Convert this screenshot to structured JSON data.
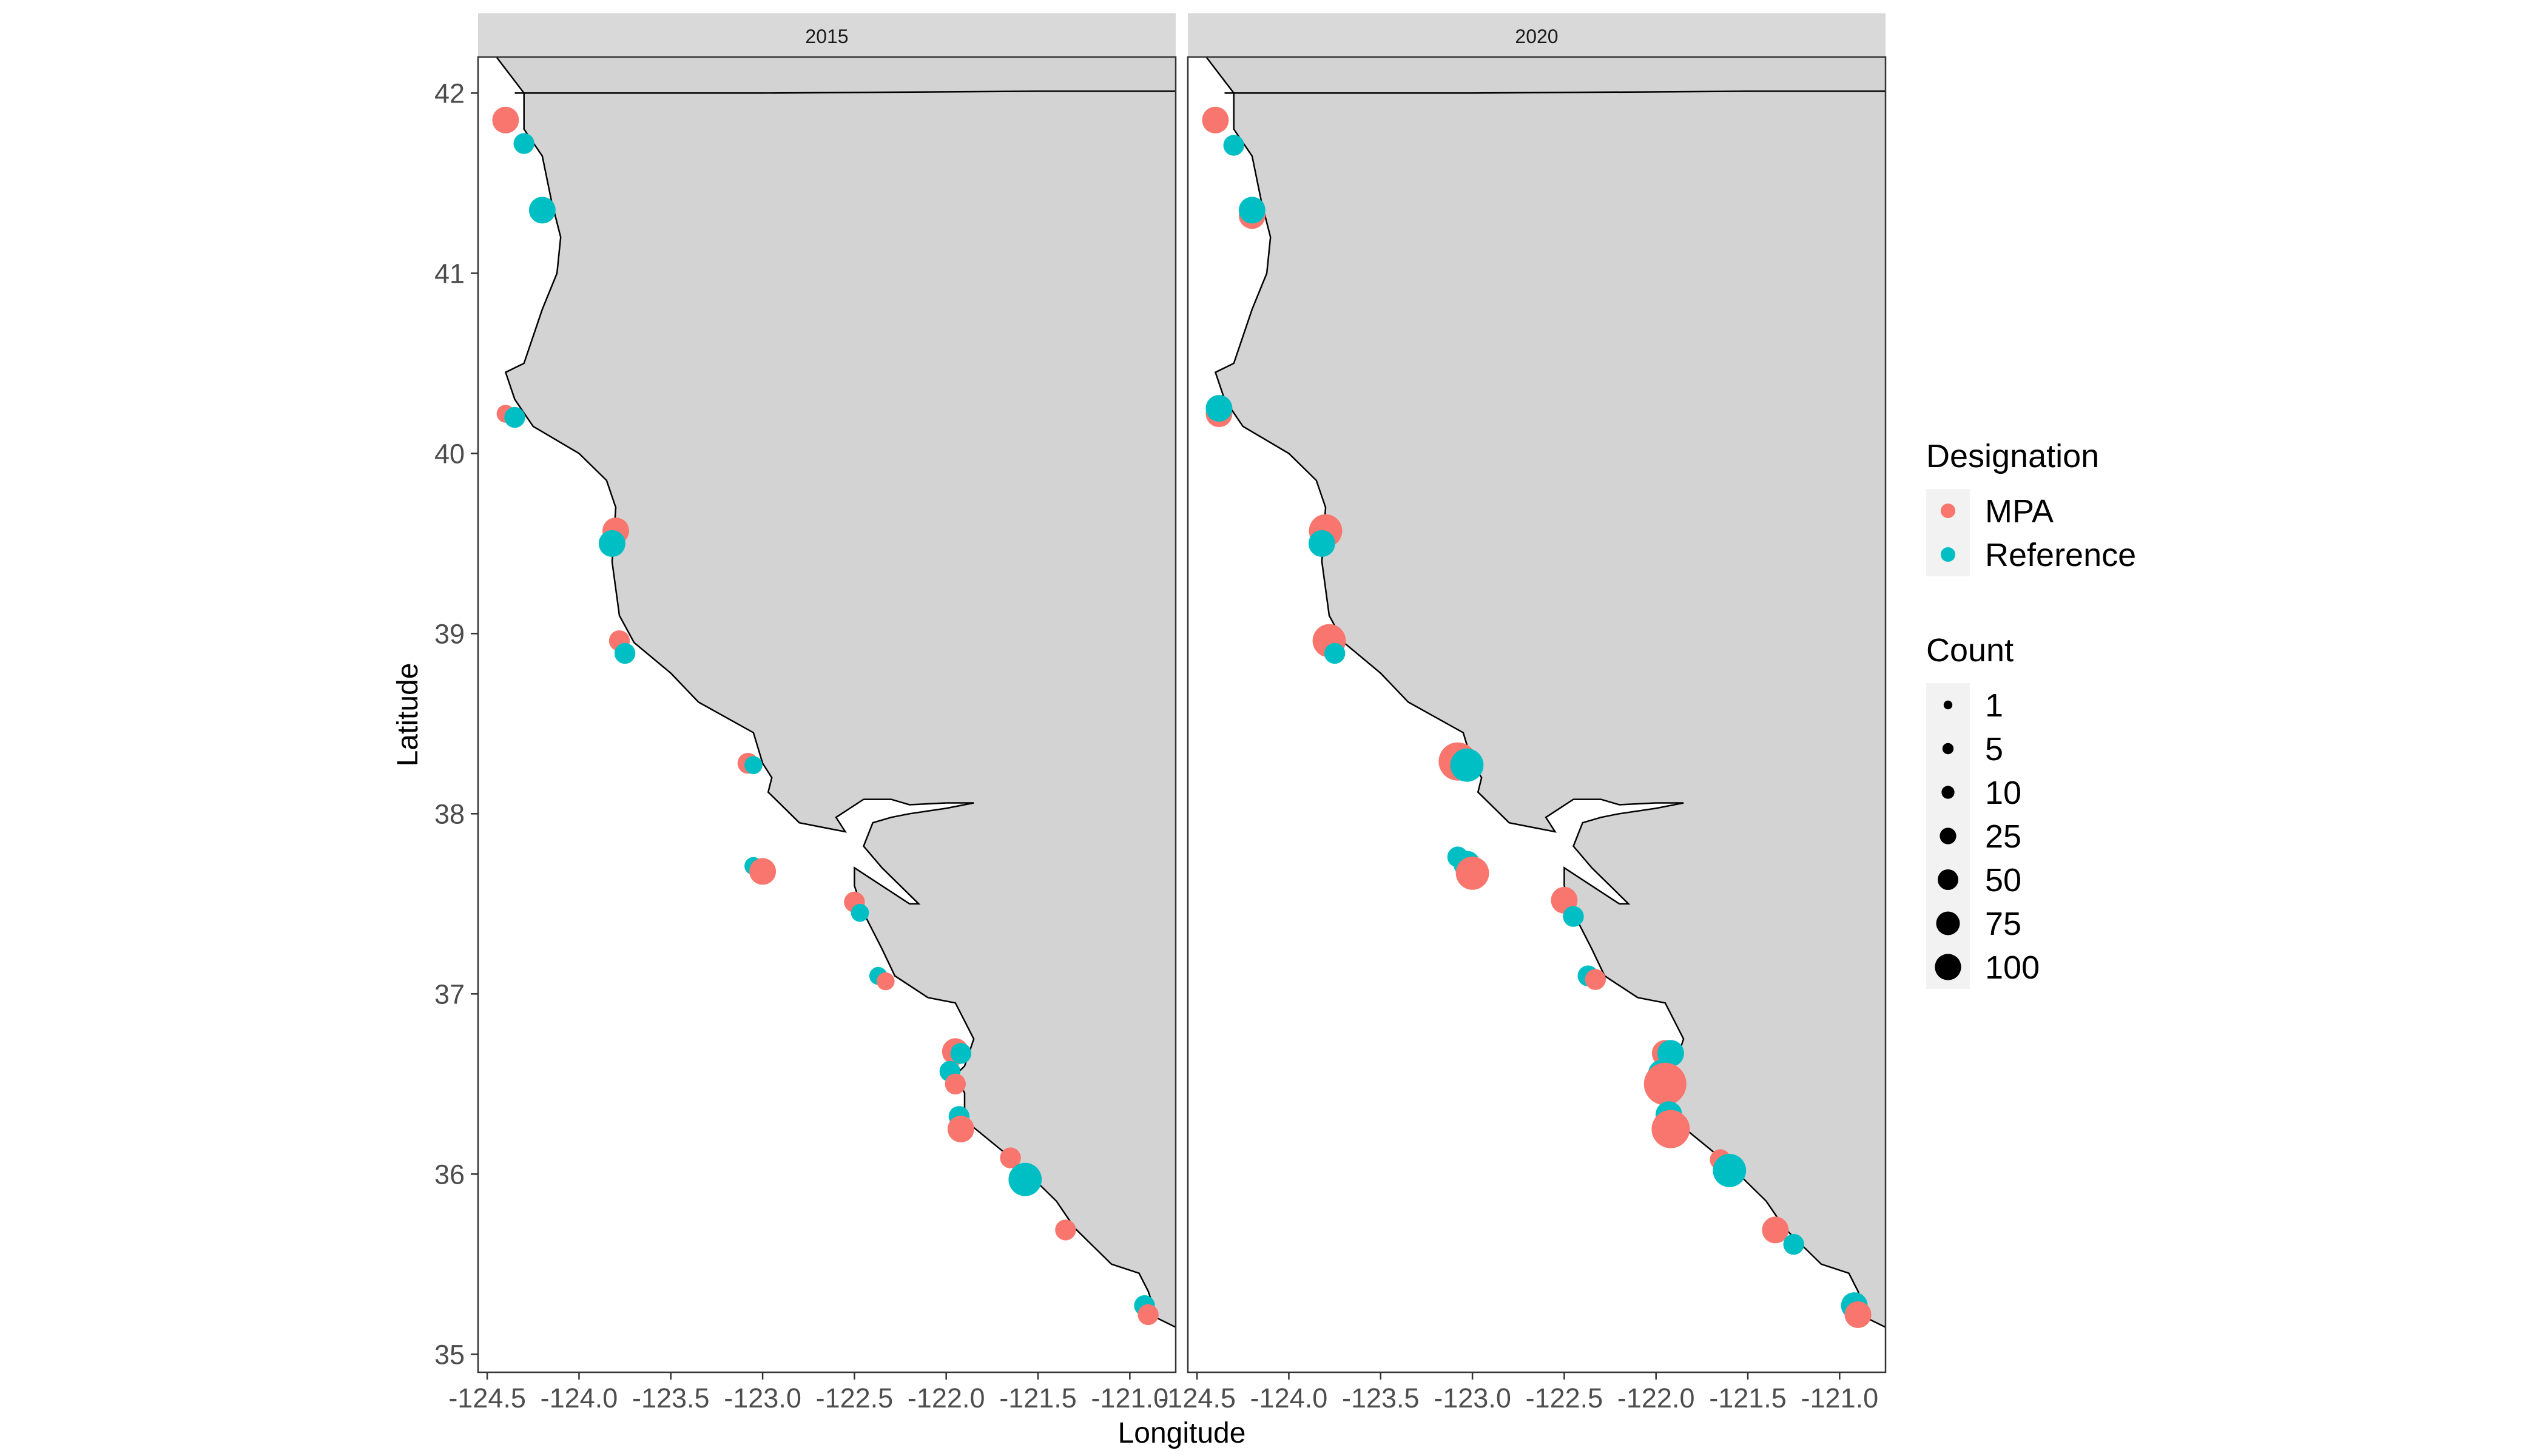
{
  "chart_data": {
    "type": "scatter",
    "facets": [
      "2015",
      "2020"
    ],
    "xlabel": "Longitude",
    "ylabel": "Latitude",
    "xlim": [
      -124.55,
      -120.75
    ],
    "ylim": [
      34.9,
      42.2
    ],
    "xticks": [
      -124.5,
      -124.0,
      -123.5,
      -123.0,
      -122.5,
      -122.0,
      -121.5,
      -121.0
    ],
    "xtick_labels": [
      "-124.5",
      "-124.0",
      "-123.5",
      "-123.0",
      "-122.5",
      "-122.0",
      "-121.5",
      "-121.0"
    ],
    "yticks": [
      35,
      36,
      37,
      38,
      39,
      40,
      41,
      42
    ],
    "ytick_labels": [
      "35",
      "36",
      "37",
      "38",
      "39",
      "40",
      "41",
      "42"
    ],
    "grid": false,
    "background": {
      "land": "#d3d3d3",
      "ocean": "#ffffff",
      "strip": "#d9d9d9",
      "outline": "#000000"
    },
    "legend": {
      "placement": "right",
      "color_title": "Designation",
      "color_entries": [
        {
          "label": "MPA",
          "color": "#F8766D"
        },
        {
          "label": "Reference",
          "color": "#00BFC4"
        }
      ],
      "size_title": "Count",
      "size_entries": [
        {
          "label": "1",
          "value": 1
        },
        {
          "label": "5",
          "value": 5
        },
        {
          "label": "10",
          "value": 10
        },
        {
          "label": "25",
          "value": 25
        },
        {
          "label": "50",
          "value": 50
        },
        {
          "label": "75",
          "value": 75
        },
        {
          "label": "100",
          "value": 100
        }
      ]
    },
    "coastline": [
      [
        -124.45,
        42.2
      ],
      [
        -124.3,
        42.0
      ],
      [
        -124.3,
        41.8
      ],
      [
        -124.2,
        41.65
      ],
      [
        -124.15,
        41.4
      ],
      [
        -124.1,
        41.2
      ],
      [
        -124.12,
        41.0
      ],
      [
        -124.2,
        40.8
      ],
      [
        -124.3,
        40.5
      ],
      [
        -124.4,
        40.45
      ],
      [
        -124.35,
        40.3
      ],
      [
        -124.25,
        40.15
      ],
      [
        -124.0,
        40.0
      ],
      [
        -123.85,
        39.85
      ],
      [
        -123.8,
        39.7
      ],
      [
        -123.82,
        39.4
      ],
      [
        -123.78,
        39.1
      ],
      [
        -123.7,
        38.95
      ],
      [
        -123.5,
        38.78
      ],
      [
        -123.35,
        38.62
      ],
      [
        -123.05,
        38.45
      ],
      [
        -123.0,
        38.28
      ],
      [
        -122.95,
        38.2
      ],
      [
        -122.97,
        38.12
      ],
      [
        -122.85,
        38.0
      ],
      [
        -122.8,
        37.95
      ],
      [
        -122.65,
        37.92
      ],
      [
        -122.55,
        37.9
      ],
      [
        -122.6,
        37.98
      ],
      [
        -122.45,
        38.08
      ],
      [
        -122.3,
        38.08
      ],
      [
        -122.2,
        38.05
      ],
      [
        -122.0,
        38.06
      ],
      [
        -121.85,
        38.06
      ],
      [
        -122.0,
        38.03
      ],
      [
        -122.2,
        38.0
      ],
      [
        -122.3,
        37.98
      ],
      [
        -122.4,
        37.95
      ],
      [
        -122.45,
        37.82
      ],
      [
        -122.35,
        37.7
      ],
      [
        -122.15,
        37.5
      ],
      [
        -122.2,
        37.5
      ],
      [
        -122.38,
        37.62
      ],
      [
        -122.5,
        37.7
      ],
      [
        -122.5,
        37.6
      ],
      [
        -122.45,
        37.45
      ],
      [
        -122.35,
        37.25
      ],
      [
        -122.28,
        37.1
      ],
      [
        -122.1,
        36.98
      ],
      [
        -121.95,
        36.95
      ],
      [
        -121.9,
        36.85
      ],
      [
        -121.85,
        36.75
      ],
      [
        -121.9,
        36.6
      ],
      [
        -121.95,
        36.55
      ],
      [
        -121.9,
        36.45
      ],
      [
        -121.9,
        36.3
      ],
      [
        -121.6,
        36.05
      ],
      [
        -121.4,
        35.85
      ],
      [
        -121.3,
        35.7
      ],
      [
        -121.2,
        35.6
      ],
      [
        -121.1,
        35.5
      ],
      [
        -120.95,
        35.45
      ],
      [
        -120.9,
        35.35
      ],
      [
        -120.85,
        35.2
      ],
      [
        -120.75,
        35.15
      ]
    ],
    "border": [
      [
        -124.35,
        42.0
      ],
      [
        -123.0,
        42.0
      ],
      [
        -121.5,
        42.01
      ],
      [
        -120.75,
        42.01
      ]
    ],
    "series": [
      {
        "facet": "2015",
        "points": [
          {
            "lon": -124.4,
            "lat": 41.85,
            "group": "MPA",
            "count": 25
          },
          {
            "lon": -124.3,
            "lat": 41.72,
            "group": "Reference",
            "count": 10
          },
          {
            "lon": -124.2,
            "lat": 41.35,
            "group": "Reference",
            "count": 25
          },
          {
            "lon": -124.4,
            "lat": 40.22,
            "group": "MPA",
            "count": 5
          },
          {
            "lon": -124.35,
            "lat": 40.2,
            "group": "Reference",
            "count": 10
          },
          {
            "lon": -123.8,
            "lat": 39.57,
            "group": "MPA",
            "count": 25
          },
          {
            "lon": -123.82,
            "lat": 39.5,
            "group": "Reference",
            "count": 25
          },
          {
            "lon": -123.78,
            "lat": 38.96,
            "group": "MPA",
            "count": 10
          },
          {
            "lon": -123.75,
            "lat": 38.89,
            "group": "Reference",
            "count": 10
          },
          {
            "lon": -123.08,
            "lat": 38.28,
            "group": "MPA",
            "count": 10
          },
          {
            "lon": -123.05,
            "lat": 38.27,
            "group": "Reference",
            "count": 5
          },
          {
            "lon": -123.05,
            "lat": 37.71,
            "group": "Reference",
            "count": 5
          },
          {
            "lon": -123.0,
            "lat": 37.68,
            "group": "MPA",
            "count": 25
          },
          {
            "lon": -122.5,
            "lat": 37.51,
            "group": "MPA",
            "count": 10
          },
          {
            "lon": -122.47,
            "lat": 37.45,
            "group": "Reference",
            "count": 5
          },
          {
            "lon": -122.37,
            "lat": 37.1,
            "group": "Reference",
            "count": 5
          },
          {
            "lon": -122.33,
            "lat": 37.07,
            "group": "MPA",
            "count": 5
          },
          {
            "lon": -121.95,
            "lat": 36.68,
            "group": "MPA",
            "count": 25
          },
          {
            "lon": -121.92,
            "lat": 36.67,
            "group": "Reference",
            "count": 10
          },
          {
            "lon": -121.98,
            "lat": 36.57,
            "group": "Reference",
            "count": 10
          },
          {
            "lon": -121.95,
            "lat": 36.5,
            "group": "MPA",
            "count": 10
          },
          {
            "lon": -121.93,
            "lat": 36.32,
            "group": "Reference",
            "count": 10
          },
          {
            "lon": -121.92,
            "lat": 36.25,
            "group": "MPA",
            "count": 25
          },
          {
            "lon": -121.65,
            "lat": 36.09,
            "group": "MPA",
            "count": 10
          },
          {
            "lon": -121.57,
            "lat": 35.97,
            "group": "Reference",
            "count": 50
          },
          {
            "lon": -121.35,
            "lat": 35.69,
            "group": "MPA",
            "count": 10
          },
          {
            "lon": -120.92,
            "lat": 35.27,
            "group": "Reference",
            "count": 10
          },
          {
            "lon": -120.9,
            "lat": 35.22,
            "group": "MPA",
            "count": 10
          }
        ]
      },
      {
        "facet": "2020",
        "points": [
          {
            "lon": -124.4,
            "lat": 41.85,
            "group": "MPA",
            "count": 25
          },
          {
            "lon": -124.3,
            "lat": 41.71,
            "group": "Reference",
            "count": 10
          },
          {
            "lon": -124.2,
            "lat": 41.32,
            "group": "MPA",
            "count": 25
          },
          {
            "lon": -124.2,
            "lat": 41.35,
            "group": "Reference",
            "count": 25
          },
          {
            "lon": -124.38,
            "lat": 40.22,
            "group": "MPA",
            "count": 25
          },
          {
            "lon": -124.38,
            "lat": 40.25,
            "group": "Reference",
            "count": 25
          },
          {
            "lon": -123.8,
            "lat": 39.57,
            "group": "MPA",
            "count": 50
          },
          {
            "lon": -123.82,
            "lat": 39.5,
            "group": "Reference",
            "count": 25
          },
          {
            "lon": -123.78,
            "lat": 38.96,
            "group": "MPA",
            "count": 50
          },
          {
            "lon": -123.75,
            "lat": 38.89,
            "group": "Reference",
            "count": 10
          },
          {
            "lon": -123.08,
            "lat": 38.29,
            "group": "MPA",
            "count": 75
          },
          {
            "lon": -123.03,
            "lat": 38.27,
            "group": "Reference",
            "count": 50
          },
          {
            "lon": -123.08,
            "lat": 37.76,
            "group": "Reference",
            "count": 10
          },
          {
            "lon": -123.03,
            "lat": 37.72,
            "group": "Reference",
            "count": 25
          },
          {
            "lon": -123.0,
            "lat": 37.67,
            "group": "MPA",
            "count": 50
          },
          {
            "lon": -122.5,
            "lat": 37.52,
            "group": "MPA",
            "count": 25
          },
          {
            "lon": -122.45,
            "lat": 37.43,
            "group": "Reference",
            "count": 10
          },
          {
            "lon": -122.37,
            "lat": 37.1,
            "group": "Reference",
            "count": 10
          },
          {
            "lon": -122.33,
            "lat": 37.08,
            "group": "MPA",
            "count": 10
          },
          {
            "lon": -121.95,
            "lat": 36.67,
            "group": "MPA",
            "count": 25
          },
          {
            "lon": -121.92,
            "lat": 36.67,
            "group": "Reference",
            "count": 25
          },
          {
            "lon": -121.97,
            "lat": 36.56,
            "group": "Reference",
            "count": 25
          },
          {
            "lon": -121.95,
            "lat": 36.5,
            "group": "MPA",
            "count": 100
          },
          {
            "lon": -121.93,
            "lat": 36.33,
            "group": "Reference",
            "count": 25
          },
          {
            "lon": -121.92,
            "lat": 36.25,
            "group": "MPA",
            "count": 75
          },
          {
            "lon": -121.65,
            "lat": 36.08,
            "group": "MPA",
            "count": 10
          },
          {
            "lon": -121.6,
            "lat": 36.02,
            "group": "Reference",
            "count": 50
          },
          {
            "lon": -121.35,
            "lat": 35.69,
            "group": "MPA",
            "count": 25
          },
          {
            "lon": -121.25,
            "lat": 35.61,
            "group": "Reference",
            "count": 10
          },
          {
            "lon": -120.92,
            "lat": 35.27,
            "group": "Reference",
            "count": 25
          },
          {
            "lon": -120.9,
            "lat": 35.22,
            "group": "MPA",
            "count": 25
          }
        ]
      }
    ]
  }
}
